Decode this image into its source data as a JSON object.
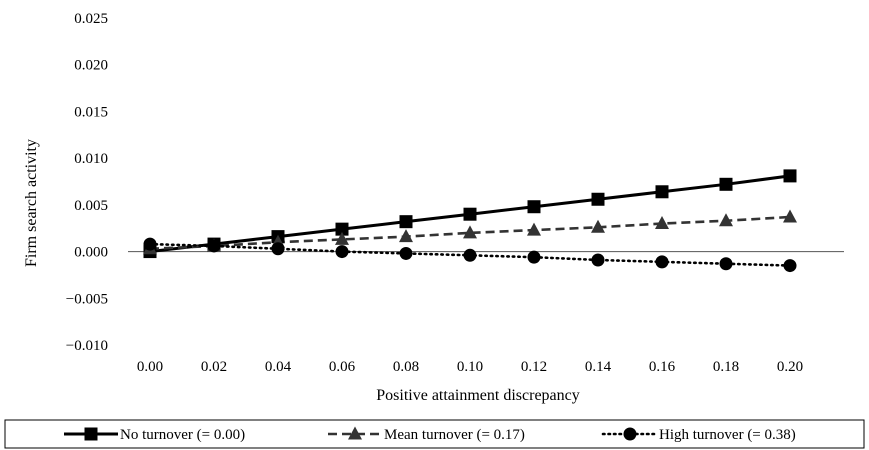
{
  "chart_data": {
    "type": "line",
    "title": "",
    "xlabel": "Positive attainment discrepancy",
    "ylabel": "Firm search activity",
    "x": [
      0.0,
      0.02,
      0.04,
      0.06,
      0.08,
      0.1,
      0.12,
      0.14,
      0.16,
      0.18,
      0.2
    ],
    "x_tick_labels": [
      "0.00",
      "0.02",
      "0.04",
      "0.06",
      "0.08",
      "0.10",
      "0.12",
      "0.14",
      "0.16",
      "0.18",
      "0.20"
    ],
    "ylim": [
      -0.01,
      0.025
    ],
    "y_ticks": [
      -0.01,
      -0.005,
      0.0,
      0.005,
      0.01,
      0.015,
      0.02,
      0.025
    ],
    "y_tick_labels": [
      "−0.010",
      "−0.005",
      "0.000",
      "0.005",
      "0.010",
      "0.015",
      "0.020",
      "0.025"
    ],
    "grid": false,
    "legend_position": "bottom",
    "series": [
      {
        "name": "No turnover (= 0.00)",
        "line_style": "solid",
        "marker": "square",
        "color": "#000000",
        "values": [
          0.0,
          0.0008,
          0.0016,
          0.0024,
          0.0032,
          0.004,
          0.0048,
          0.0056,
          0.0064,
          0.0072,
          0.0081
        ]
      },
      {
        "name": "Mean turnover (= 0.17)",
        "line_style": "dashed",
        "marker": "triangle",
        "color": "#333333",
        "values": [
          0.0003,
          0.0006,
          0.001,
          0.0013,
          0.0016,
          0.002,
          0.0023,
          0.0026,
          0.003,
          0.0033,
          0.0037
        ]
      },
      {
        "name": "High turnover (= 0.38)",
        "line_style": "dotted",
        "marker": "circle",
        "color": "#000000",
        "values": [
          0.0008,
          0.0006,
          0.0003,
          -0.0,
          -0.0002,
          -0.0004,
          -0.0006,
          -0.0009,
          -0.0011,
          -0.0013,
          -0.0015
        ]
      }
    ]
  }
}
